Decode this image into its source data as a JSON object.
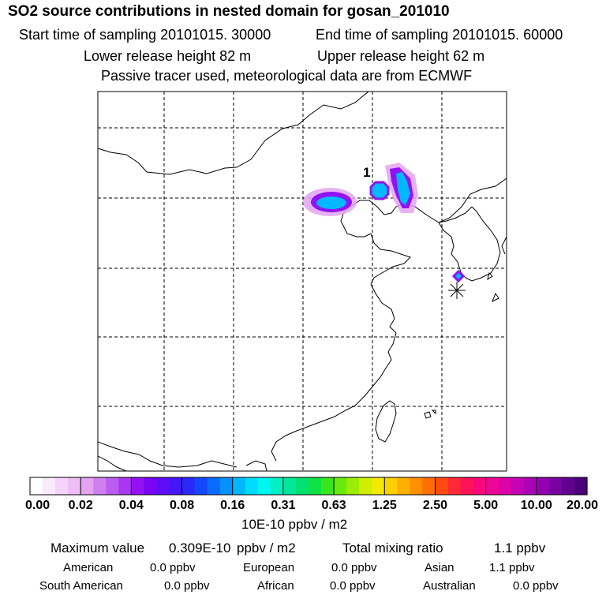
{
  "header": {
    "title": "SO2 source contributions in nested domain for gosan_201010",
    "start_time": "Start time of sampling 20101015. 30000",
    "end_time": "End time of sampling 20101015. 60000",
    "lower_release": "Lower release height   82 m",
    "upper_release": "Upper release height   62 m",
    "note": "Passive tracer used, meteorological data are from ECMWF"
  },
  "chart_data": {
    "type": "heatmap",
    "title": "SO2 source contributions in nested domain for gosan_201010",
    "map_label": "1",
    "colorbar": {
      "tick_labels": [
        "0.00",
        "0.02",
        "0.04",
        "0.08",
        "0.16",
        "0.31",
        "0.63",
        "1.25",
        "2.50",
        "5.00",
        "10.00",
        "20.00"
      ],
      "unit": "10E-10 ppbv / m2",
      "colors": [
        "#ffffff",
        "#fbeafb",
        "#f6d3f8",
        "#eebdf4",
        "#e3a3f1",
        "#cf7ff0",
        "#bb5ef0",
        "#a936f0",
        "#9212f2",
        "#7a05f4",
        "#5f0cf6",
        "#4316f8",
        "#2b28fb",
        "#1547fd",
        "#0a6bff",
        "#0592ff",
        "#00b8ff",
        "#00dcff",
        "#00f6ee",
        "#00f0c4",
        "#00e89a",
        "#00e070",
        "#10e245",
        "#38e61e",
        "#6ae90c",
        "#9cec06",
        "#cfee02",
        "#f4ea00",
        "#ffd000",
        "#ffb000",
        "#ff9000",
        "#ff6e00",
        "#ff4b12",
        "#ff2a36",
        "#ff1258",
        "#fa087a",
        "#ee0694",
        "#dc04a8",
        "#c603b4",
        "#ac02b8",
        "#9201b0",
        "#7a01a2",
        "#620090",
        "#4a0078"
      ]
    },
    "plume_levels": {
      "outer": 0.02,
      "middle": 0.04,
      "inner": 0.16
    },
    "summary": {
      "max_label": "Maximum value",
      "max_value": "0.309E-10",
      "max_unit": "ppbv / m2",
      "total_label": "Total mixing ratio",
      "total_value": "1.1 ppbv"
    },
    "regions": [
      {
        "name": "American",
        "value": "0.0 ppbv"
      },
      {
        "name": "European",
        "value": "0.0 ppbv"
      },
      {
        "name": "Asian",
        "value": "1.1 ppbv"
      },
      {
        "name": "South American",
        "value": "0.0 ppbv"
      },
      {
        "name": "African",
        "value": "0.0 ppbv"
      },
      {
        "name": "Australian",
        "value": "0.0 ppbv"
      }
    ]
  }
}
